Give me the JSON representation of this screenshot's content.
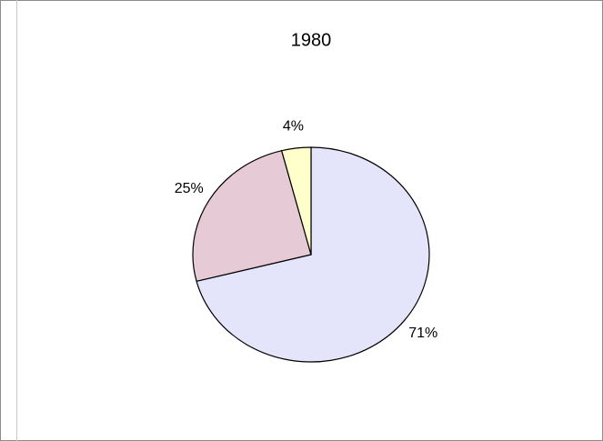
{
  "chart_data": {
    "type": "pie",
    "title": "1980",
    "values": [
      71,
      25,
      4
    ],
    "value_labels": [
      "71%",
      "25%",
      "4%"
    ],
    "colors": [
      "#e4e4fa",
      "#e6cad6",
      "#ffffcc"
    ]
  }
}
